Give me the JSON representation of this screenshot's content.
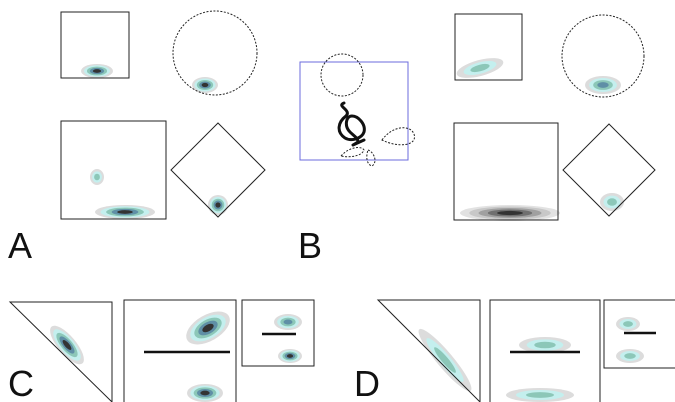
{
  "panels": [
    {
      "label": "A"
    },
    {
      "label": "B"
    },
    {
      "label": "C"
    },
    {
      "label": "D"
    }
  ]
}
